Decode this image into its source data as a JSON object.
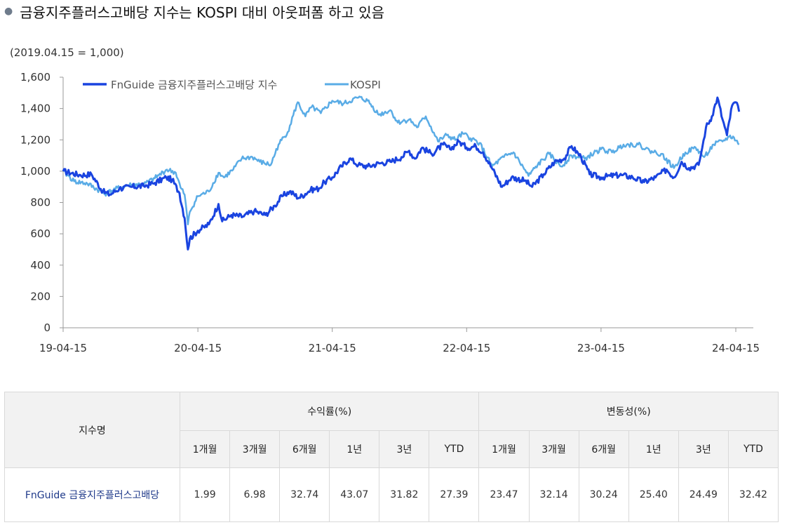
{
  "headline": "금융지주플러스고배당 지수는 KOSPI 대비 아웃퍼폼 하고 있음",
  "chart_data": {
    "type": "line",
    "unit_note": "(2019.04.15 = 1,000)",
    "ylim": [
      0,
      1600
    ],
    "yticks": [
      0,
      200,
      400,
      600,
      800,
      1000,
      1200,
      1400,
      1600
    ],
    "ytick_labels": [
      "0",
      "200",
      "400",
      "600",
      "800",
      "1,000",
      "1,200",
      "1,400",
      "1,600"
    ],
    "xlim": [
      "2019-04-15",
      "2024-04-15"
    ],
    "xticks": [
      "2019-04-15",
      "2020-04-15",
      "2021-04-15",
      "2022-04-15",
      "2023-04-15",
      "2024-04-15"
    ],
    "xtick_labels": [
      "19-04-15",
      "20-04-15",
      "21-04-15",
      "22-04-15",
      "23-04-15",
      "24-04-15"
    ],
    "legend_position": "top-left",
    "grid": false,
    "series": [
      {
        "name": "FnGuide 금융지주플러스고배당 지수",
        "color": "#1a44e0",
        "points": [
          [
            "2019-04-15",
            1000
          ],
          [
            "2019-06-01",
            975
          ],
          [
            "2019-07-01",
            980
          ],
          [
            "2019-08-01",
            870
          ],
          [
            "2019-08-20",
            850
          ],
          [
            "2019-09-15",
            890
          ],
          [
            "2019-10-20",
            900
          ],
          [
            "2019-11-20",
            905
          ],
          [
            "2019-12-20",
            925
          ],
          [
            "2020-01-20",
            960
          ],
          [
            "2020-02-05",
            945
          ],
          [
            "2020-02-25",
            860
          ],
          [
            "2020-03-10",
            700
          ],
          [
            "2020-03-19",
            500
          ],
          [
            "2020-03-24",
            570
          ],
          [
            "2020-04-15",
            620
          ],
          [
            "2020-05-15",
            660
          ],
          [
            "2020-06-10",
            790
          ],
          [
            "2020-06-20",
            680
          ],
          [
            "2020-07-15",
            720
          ],
          [
            "2020-08-15",
            710
          ],
          [
            "2020-09-15",
            745
          ],
          [
            "2020-10-15",
            720
          ],
          [
            "2020-11-10",
            780
          ],
          [
            "2020-11-30",
            840
          ],
          [
            "2020-12-20",
            870
          ],
          [
            "2021-01-15",
            830
          ],
          [
            "2021-02-15",
            880
          ],
          [
            "2021-03-10",
            890
          ],
          [
            "2021-03-25",
            930
          ],
          [
            "2021-04-15",
            960
          ],
          [
            "2021-05-10",
            1030
          ],
          [
            "2021-06-01",
            1080
          ],
          [
            "2021-06-25",
            1040
          ],
          [
            "2021-07-20",
            1030
          ],
          [
            "2021-08-20",
            1050
          ],
          [
            "2021-09-20",
            1060
          ],
          [
            "2021-10-20",
            1090
          ],
          [
            "2021-11-10",
            1130
          ],
          [
            "2021-11-25",
            1080
          ],
          [
            "2021-12-15",
            1150
          ],
          [
            "2022-01-10",
            1110
          ],
          [
            "2022-02-10",
            1170
          ],
          [
            "2022-03-01",
            1140
          ],
          [
            "2022-03-25",
            1190
          ],
          [
            "2022-04-15",
            1150
          ],
          [
            "2022-05-10",
            1160
          ],
          [
            "2022-05-30",
            1120
          ],
          [
            "2022-06-25",
            1010
          ],
          [
            "2022-07-20",
            900
          ],
          [
            "2022-08-15",
            960
          ],
          [
            "2022-09-20",
            940
          ],
          [
            "2022-10-10",
            900
          ],
          [
            "2022-11-10",
            980
          ],
          [
            "2022-12-10",
            1060
          ],
          [
            "2023-01-05",
            1080
          ],
          [
            "2023-01-25",
            1160
          ],
          [
            "2023-02-20",
            1090
          ],
          [
            "2023-03-15",
            980
          ],
          [
            "2023-04-15",
            960
          ],
          [
            "2023-05-10",
            970
          ],
          [
            "2023-06-10",
            975
          ],
          [
            "2023-07-10",
            960
          ],
          [
            "2023-08-10",
            930
          ],
          [
            "2023-09-10",
            960
          ],
          [
            "2023-10-10",
            1010
          ],
          [
            "2023-10-30",
            960
          ],
          [
            "2023-11-20",
            1060
          ],
          [
            "2023-12-10",
            1020
          ],
          [
            "2024-01-05",
            1040
          ],
          [
            "2024-01-15",
            1150
          ],
          [
            "2024-01-25",
            1280
          ],
          [
            "2024-02-10",
            1350
          ],
          [
            "2024-02-25",
            1470
          ],
          [
            "2024-03-10",
            1330
          ],
          [
            "2024-03-22",
            1230
          ],
          [
            "2024-04-05",
            1420
          ],
          [
            "2024-04-15",
            1440
          ],
          [
            "2024-04-24",
            1380
          ]
        ]
      },
      {
        "name": "KOSPI",
        "color": "#5aace6",
        "points": [
          [
            "2019-04-15",
            1000
          ],
          [
            "2019-05-15",
            935
          ],
          [
            "2019-06-20",
            920
          ],
          [
            "2019-08-06",
            855
          ],
          [
            "2019-09-15",
            895
          ],
          [
            "2019-10-20",
            915
          ],
          [
            "2019-11-20",
            915
          ],
          [
            "2019-12-20",
            955
          ],
          [
            "2020-01-22",
            1010
          ],
          [
            "2020-02-15",
            990
          ],
          [
            "2020-02-28",
            895
          ],
          [
            "2020-03-10",
            850
          ],
          [
            "2020-03-19",
            660
          ],
          [
            "2020-03-24",
            740
          ],
          [
            "2020-04-15",
            840
          ],
          [
            "2020-05-15",
            870
          ],
          [
            "2020-06-10",
            990
          ],
          [
            "2020-06-25",
            960
          ],
          [
            "2020-07-20",
            1010
          ],
          [
            "2020-08-12",
            1080
          ],
          [
            "2020-09-10",
            1090
          ],
          [
            "2020-09-30",
            1060
          ],
          [
            "2020-10-30",
            1040
          ],
          [
            "2020-11-20",
            1170
          ],
          [
            "2020-12-15",
            1250
          ],
          [
            "2021-01-11",
            1440
          ],
          [
            "2021-02-01",
            1350
          ],
          [
            "2021-02-18",
            1410
          ],
          [
            "2021-03-15",
            1370
          ],
          [
            "2021-04-15",
            1450
          ],
          [
            "2021-05-15",
            1430
          ],
          [
            "2021-06-25",
            1470
          ],
          [
            "2021-07-20",
            1450
          ],
          [
            "2021-08-20",
            1360
          ],
          [
            "2021-09-20",
            1390
          ],
          [
            "2021-10-10",
            1310
          ],
          [
            "2021-11-10",
            1330
          ],
          [
            "2021-12-01",
            1280
          ],
          [
            "2021-12-25",
            1350
          ],
          [
            "2022-01-27",
            1190
          ],
          [
            "2022-02-20",
            1230
          ],
          [
            "2022-03-15",
            1200
          ],
          [
            "2022-04-05",
            1240
          ],
          [
            "2022-04-25",
            1210
          ],
          [
            "2022-05-20",
            1180
          ],
          [
            "2022-06-23",
            1030
          ],
          [
            "2022-07-25",
            1090
          ],
          [
            "2022-08-20",
            1120
          ],
          [
            "2022-09-30",
            970
          ],
          [
            "2022-10-25",
            1040
          ],
          [
            "2022-11-25",
            1110
          ],
          [
            "2022-12-28",
            1030
          ],
          [
            "2023-01-25",
            1100
          ],
          [
            "2023-03-01",
            1080
          ],
          [
            "2023-04-15",
            1140
          ],
          [
            "2023-05-15",
            1120
          ],
          [
            "2023-06-15",
            1170
          ],
          [
            "2023-07-25",
            1170
          ],
          [
            "2023-08-25",
            1130
          ],
          [
            "2023-09-25",
            1110
          ],
          [
            "2023-10-30",
            1020
          ],
          [
            "2023-11-30",
            1120
          ],
          [
            "2023-12-28",
            1150
          ],
          [
            "2024-01-20",
            1090
          ],
          [
            "2024-02-15",
            1170
          ],
          [
            "2024-03-10",
            1190
          ],
          [
            "2024-03-28",
            1220
          ],
          [
            "2024-04-10",
            1215
          ],
          [
            "2024-04-24",
            1170
          ]
        ]
      }
    ]
  },
  "table": {
    "col_name_header": "지수명",
    "group_return": "수익률(%)",
    "group_vol": "변동성(%)",
    "periods": [
      "1개월",
      "3개월",
      "6개월",
      "1년",
      "3년",
      "YTD",
      "1개월",
      "3개월",
      "6개월",
      "1년",
      "3년",
      "YTD"
    ],
    "rows": [
      {
        "name": "FnGuide 금융지주플러스고배당",
        "values": [
          "1.99",
          "6.98",
          "32.74",
          "43.07",
          "31.82",
          "27.39",
          "23.47",
          "32.14",
          "30.24",
          "25.40",
          "24.49",
          "32.42"
        ]
      }
    ]
  }
}
